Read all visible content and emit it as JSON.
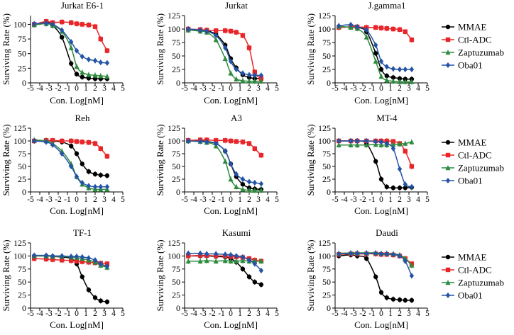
{
  "figure": {
    "description_id": "dose-response-panels"
  },
  "common": {
    "ylabel": "Surviving Rate (%)",
    "xlabel": "Con. Log[nM]",
    "xticks": [
      -5,
      -4,
      -3,
      -2,
      -1,
      0,
      1,
      2,
      3,
      4,
      5
    ],
    "xlim": [
      -5,
      5
    ],
    "ylim": [
      0,
      125
    ],
    "ylim_short": [
      0,
      115
    ]
  },
  "legend": {
    "entries": [
      {
        "name": "MMAE",
        "color": "#000000",
        "marker": "circle"
      },
      {
        "name": "Ctl-ADC",
        "color": "#e8262a",
        "marker": "square"
      },
      {
        "name": "Zaptuzumab",
        "color": "#2e8b3e",
        "marker": "triangle"
      },
      {
        "name": "Oba01",
        "color": "#2453a6",
        "marker": "diamond"
      }
    ]
  },
  "chart_data": [
    {
      "type": "scatter",
      "title": "Jurkat E6-1",
      "ylim": [
        0,
        115
      ],
      "yticks": [
        0,
        25,
        50,
        75,
        100
      ],
      "x": [
        -4.6,
        -3.3,
        -2.6,
        -1.6,
        -0.6,
        0,
        0.6,
        1.3,
        2.0,
        2.6,
        3.3
      ],
      "series": [
        {
          "name": "MMAE",
          "values": [
            100,
            104,
            98,
            78,
            33,
            15,
            10,
            8,
            7,
            7,
            7
          ]
        },
        {
          "name": "Ctl-ADC",
          "values": [
            100,
            105,
            103,
            104,
            103,
            101,
            100,
            99,
            96,
            75,
            55
          ]
        },
        {
          "name": "Zaptuzumab",
          "values": [
            99,
            101,
            98,
            88,
            60,
            28,
            18,
            14,
            13,
            12,
            11
          ]
        },
        {
          "name": "Oba01",
          "values": [
            101,
            102,
            100,
            90,
            70,
            55,
            45,
            40,
            38,
            35,
            34
          ]
        }
      ]
    },
    {
      "type": "scatter",
      "title": "Jurkat",
      "ylim": [
        0,
        125
      ],
      "yticks": [
        0,
        25,
        50,
        75,
        100,
        125
      ],
      "x": [
        -4.6,
        -3.3,
        -2.6,
        -1.6,
        -0.6,
        0,
        0.6,
        1.3,
        2.0,
        2.6,
        3.3
      ],
      "series": [
        {
          "name": "MMAE",
          "values": [
            100,
            98,
            97,
            90,
            70,
            45,
            28,
            15,
            10,
            8,
            8
          ]
        },
        {
          "name": "Ctl-ADC",
          "values": [
            100,
            99,
            98,
            97,
            97,
            96,
            94,
            88,
            65,
            20,
            8
          ]
        },
        {
          "name": "Zaptuzumab",
          "values": [
            98,
            96,
            94,
            80,
            45,
            18,
            7,
            4,
            3,
            3,
            3
          ]
        },
        {
          "name": "Oba01",
          "values": [
            100,
            98,
            96,
            88,
            65,
            40,
            25,
            18,
            15,
            14,
            14
          ]
        }
      ]
    },
    {
      "type": "scatter",
      "title": "J.gamma1",
      "ylim": [
        0,
        125
      ],
      "yticks": [
        0,
        25,
        50,
        75,
        100,
        125
      ],
      "x": [
        -4.6,
        -3.3,
        -2.6,
        -1.6,
        -0.6,
        0,
        0.6,
        1.3,
        2.0,
        2.6,
        3.3
      ],
      "series": [
        {
          "name": "MMAE",
          "values": [
            103,
            104,
            103,
            95,
            55,
            25,
            13,
            10,
            8,
            7,
            7
          ]
        },
        {
          "name": "Ctl-ADC",
          "values": [
            103,
            104,
            104,
            103,
            103,
            102,
            101,
            100,
            99,
            95,
            80
          ]
        },
        {
          "name": "Zaptuzumab",
          "values": [
            105,
            103,
            101,
            85,
            40,
            12,
            5,
            3,
            2,
            2,
            2
          ]
        },
        {
          "name": "Oba01",
          "values": [
            106,
            108,
            104,
            98,
            70,
            40,
            30,
            26,
            25,
            25,
            25
          ]
        }
      ]
    },
    {
      "type": "scatter",
      "title": "Reh",
      "ylim": [
        0,
        125
      ],
      "yticks": [
        0,
        25,
        50,
        75,
        100,
        125
      ],
      "x": [
        -4.6,
        -3.3,
        -2.6,
        -1.6,
        -0.6,
        0,
        0.6,
        1.3,
        2.0,
        2.6,
        3.3
      ],
      "series": [
        {
          "name": "MMAE",
          "values": [
            100,
            101,
            100,
            98,
            90,
            75,
            55,
            40,
            35,
            33,
            32
          ]
        },
        {
          "name": "Ctl-ADC",
          "values": [
            100,
            101,
            101,
            100,
            100,
            99,
            98,
            97,
            95,
            85,
            70
          ]
        },
        {
          "name": "Zaptuzumab",
          "values": [
            102,
            100,
            95,
            80,
            55,
            30,
            15,
            8,
            5,
            5,
            5
          ]
        },
        {
          "name": "Oba01",
          "values": [
            100,
            98,
            92,
            75,
            50,
            30,
            18,
            12,
            10,
            10,
            10
          ]
        }
      ]
    },
    {
      "type": "scatter",
      "title": "A3",
      "ylim": [
        0,
        125
      ],
      "yticks": [
        0,
        25,
        50,
        75,
        100,
        125
      ],
      "x": [
        -4.6,
        -3.3,
        -2.6,
        -1.6,
        -0.6,
        0,
        0.6,
        1.3,
        2.0,
        2.6,
        3.3
      ],
      "series": [
        {
          "name": "MMAE",
          "values": [
            100,
            100,
            99,
            95,
            80,
            55,
            30,
            15,
            8,
            6,
            5
          ]
        },
        {
          "name": "Ctl-ADC",
          "values": [
            101,
            102,
            102,
            101,
            101,
            100,
            99,
            98,
            95,
            85,
            72
          ]
        },
        {
          "name": "Zaptuzumab",
          "values": [
            100,
            99,
            97,
            90,
            60,
            25,
            10,
            5,
            3,
            3,
            3
          ]
        },
        {
          "name": "Oba01",
          "values": [
            100,
            99,
            98,
            95,
            80,
            55,
            35,
            25,
            20,
            18,
            16
          ]
        }
      ]
    },
    {
      "type": "scatter",
      "title": "MT-4",
      "ylim": [
        0,
        125
      ],
      "yticks": [
        0,
        25,
        50,
        75,
        100,
        125
      ],
      "x": [
        -4.6,
        -3.3,
        -2.6,
        -1.6,
        -0.6,
        0,
        0.6,
        1.3,
        2.0,
        2.6,
        3.3
      ],
      "series": [
        {
          "name": "MMAE",
          "values": [
            100,
            100,
            100,
            95,
            60,
            25,
            10,
            8,
            8,
            8,
            9
          ]
        },
        {
          "name": "Ctl-ADC",
          "values": [
            100,
            100,
            100,
            100,
            100,
            100,
            100,
            99,
            95,
            80,
            50
          ]
        },
        {
          "name": "Zaptuzumab",
          "values": [
            92,
            92,
            92,
            92,
            93,
            92,
            92,
            93,
            94,
            95,
            98
          ]
        },
        {
          "name": "Oba01",
          "values": [
            100,
            100,
            100,
            100,
            99,
            98,
            95,
            85,
            45,
            15,
            10
          ]
        }
      ]
    },
    {
      "type": "scatter",
      "title": "TF-1",
      "ylim": [
        0,
        125
      ],
      "yticks": [
        0,
        25,
        50,
        75,
        100,
        125
      ],
      "x": [
        -4.6,
        -3.3,
        -2.6,
        -1.6,
        -0.6,
        0,
        0.6,
        1.3,
        2.0,
        2.6,
        3.3
      ],
      "series": [
        {
          "name": "MMAE",
          "values": [
            100,
            100,
            99,
            98,
            95,
            85,
            60,
            35,
            20,
            14,
            12
          ]
        },
        {
          "name": "Ctl-ADC",
          "values": [
            95,
            94,
            93,
            92,
            91,
            90,
            89,
            88,
            87,
            86,
            85
          ]
        },
        {
          "name": "Zaptuzumab",
          "values": [
            100,
            100,
            99,
            99,
            98,
            97,
            95,
            92,
            88,
            82,
            78
          ]
        },
        {
          "name": "Oba01",
          "values": [
            101,
            101,
            100,
            100,
            99,
            99,
            98,
            96,
            92,
            85,
            80
          ]
        }
      ]
    },
    {
      "type": "scatter",
      "title": "Kasumi",
      "ylim": [
        0,
        125
      ],
      "yticks": [
        0,
        25,
        50,
        75,
        100,
        125
      ],
      "x": [
        -4.6,
        -3.3,
        -2.6,
        -1.6,
        -0.6,
        0,
        0.6,
        1.3,
        2.0,
        2.6,
        3.3
      ],
      "series": [
        {
          "name": "MMAE",
          "values": [
            100,
            100,
            100,
            99,
            98,
            95,
            88,
            75,
            60,
            50,
            45
          ]
        },
        {
          "name": "Ctl-ADC",
          "values": [
            100,
            101,
            101,
            100,
            100,
            99,
            98,
            97,
            95,
            92,
            90
          ]
        },
        {
          "name": "Zaptuzumab",
          "values": [
            90,
            90,
            91,
            90,
            91,
            90,
            90,
            91,
            90,
            90,
            90
          ]
        },
        {
          "name": "Oba01",
          "values": [
            105,
            105,
            104,
            104,
            103,
            102,
            100,
            98,
            92,
            85,
            72
          ]
        }
      ]
    },
    {
      "type": "scatter",
      "title": "Daudi",
      "ylim": [
        0,
        125
      ],
      "yticks": [
        0,
        25,
        50,
        75,
        100,
        125
      ],
      "x": [
        -4.6,
        -3.3,
        -2.6,
        -1.6,
        -0.6,
        0,
        0.6,
        1.3,
        2.0,
        2.6,
        3.3
      ],
      "series": [
        {
          "name": "MMAE",
          "values": [
            100,
            102,
            100,
            95,
            60,
            30,
            20,
            17,
            16,
            15,
            15
          ]
        },
        {
          "name": "Ctl-ADC",
          "values": [
            103,
            104,
            104,
            104,
            104,
            103,
            103,
            102,
            100,
            95,
            85
          ]
        },
        {
          "name": "Zaptuzumab",
          "values": [
            105,
            106,
            106,
            106,
            106,
            105,
            105,
            104,
            102,
            95,
            82
          ]
        },
        {
          "name": "Oba01",
          "values": [
            104,
            105,
            105,
            105,
            105,
            104,
            104,
            103,
            100,
            90,
            62
          ]
        }
      ]
    }
  ]
}
